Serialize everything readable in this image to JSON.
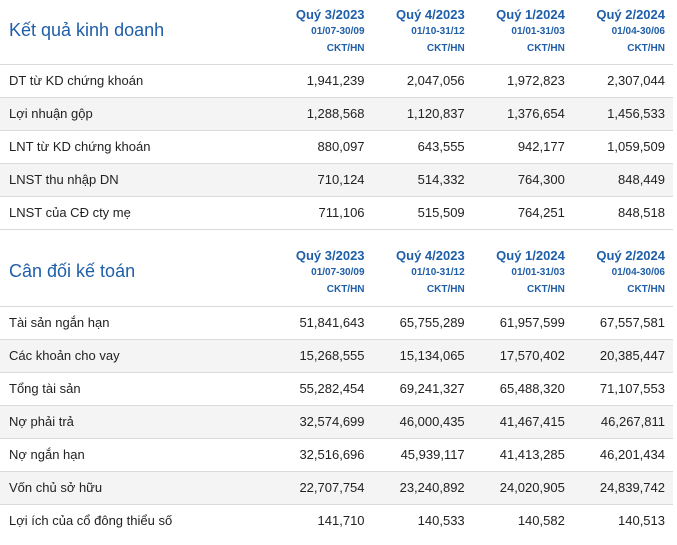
{
  "sections": [
    {
      "title": "Kết quả kinh doanh",
      "columns": [
        {
          "quarter": "Quý 3/2023",
          "range": "01/07-30/09",
          "unit": "CKT/HN"
        },
        {
          "quarter": "Quý 4/2023",
          "range": "01/10-31/12",
          "unit": "CKT/HN"
        },
        {
          "quarter": "Quý 1/2024",
          "range": "01/01-31/03",
          "unit": "CKT/HN"
        },
        {
          "quarter": "Quý 2/2024",
          "range": "01/04-30/06",
          "unit": "CKT/HN"
        }
      ],
      "rows": [
        {
          "label": "DT từ KD chứng khoán",
          "values": [
            "1,941,239",
            "2,047,056",
            "1,972,823",
            "2,307,044"
          ]
        },
        {
          "label": "Lợi nhuận gộp",
          "values": [
            "1,288,568",
            "1,120,837",
            "1,376,654",
            "1,456,533"
          ]
        },
        {
          "label": "LNT từ KD chứng khoán",
          "values": [
            "880,097",
            "643,555",
            "942,177",
            "1,059,509"
          ]
        },
        {
          "label": "LNST thu nhập DN",
          "values": [
            "710,124",
            "514,332",
            "764,300",
            "848,449"
          ]
        },
        {
          "label": "LNST của CĐ cty mẹ",
          "values": [
            "711,106",
            "515,509",
            "764,251",
            "848,518"
          ]
        }
      ]
    },
    {
      "title": "Cân đối kế toán",
      "columns": [
        {
          "quarter": "Quý 3/2023",
          "range": "01/07-30/09",
          "unit": "CKT/HN"
        },
        {
          "quarter": "Quý 4/2023",
          "range": "01/10-31/12",
          "unit": "CKT/HN"
        },
        {
          "quarter": "Quý 1/2024",
          "range": "01/01-31/03",
          "unit": "CKT/HN"
        },
        {
          "quarter": "Quý 2/2024",
          "range": "01/04-30/06",
          "unit": "CKT/HN"
        }
      ],
      "rows": [
        {
          "label": "Tài sản ngắn hạn",
          "values": [
            "51,841,643",
            "65,755,289",
            "61,957,599",
            "67,557,581"
          ]
        },
        {
          "label": "Các khoản cho vay",
          "values": [
            "15,268,555",
            "15,134,065",
            "17,570,402",
            "20,385,447"
          ]
        },
        {
          "label": "Tổng tài sản",
          "values": [
            "55,282,454",
            "69,241,327",
            "65,488,320",
            "71,107,553"
          ]
        },
        {
          "label": "Nợ phải trả",
          "values": [
            "32,574,699",
            "46,000,435",
            "41,467,415",
            "46,267,811"
          ]
        },
        {
          "label": "Nợ ngắn hạn",
          "values": [
            "32,516,696",
            "45,939,117",
            "41,413,285",
            "46,201,434"
          ]
        },
        {
          "label": "Vốn chủ sở hữu",
          "values": [
            "22,707,754",
            "23,240,892",
            "24,020,905",
            "24,839,742"
          ]
        },
        {
          "label": "Lợi ích của cổ đông thiểu số",
          "values": [
            "141,710",
            "140,533",
            "140,582",
            "140,513"
          ]
        }
      ]
    }
  ]
}
